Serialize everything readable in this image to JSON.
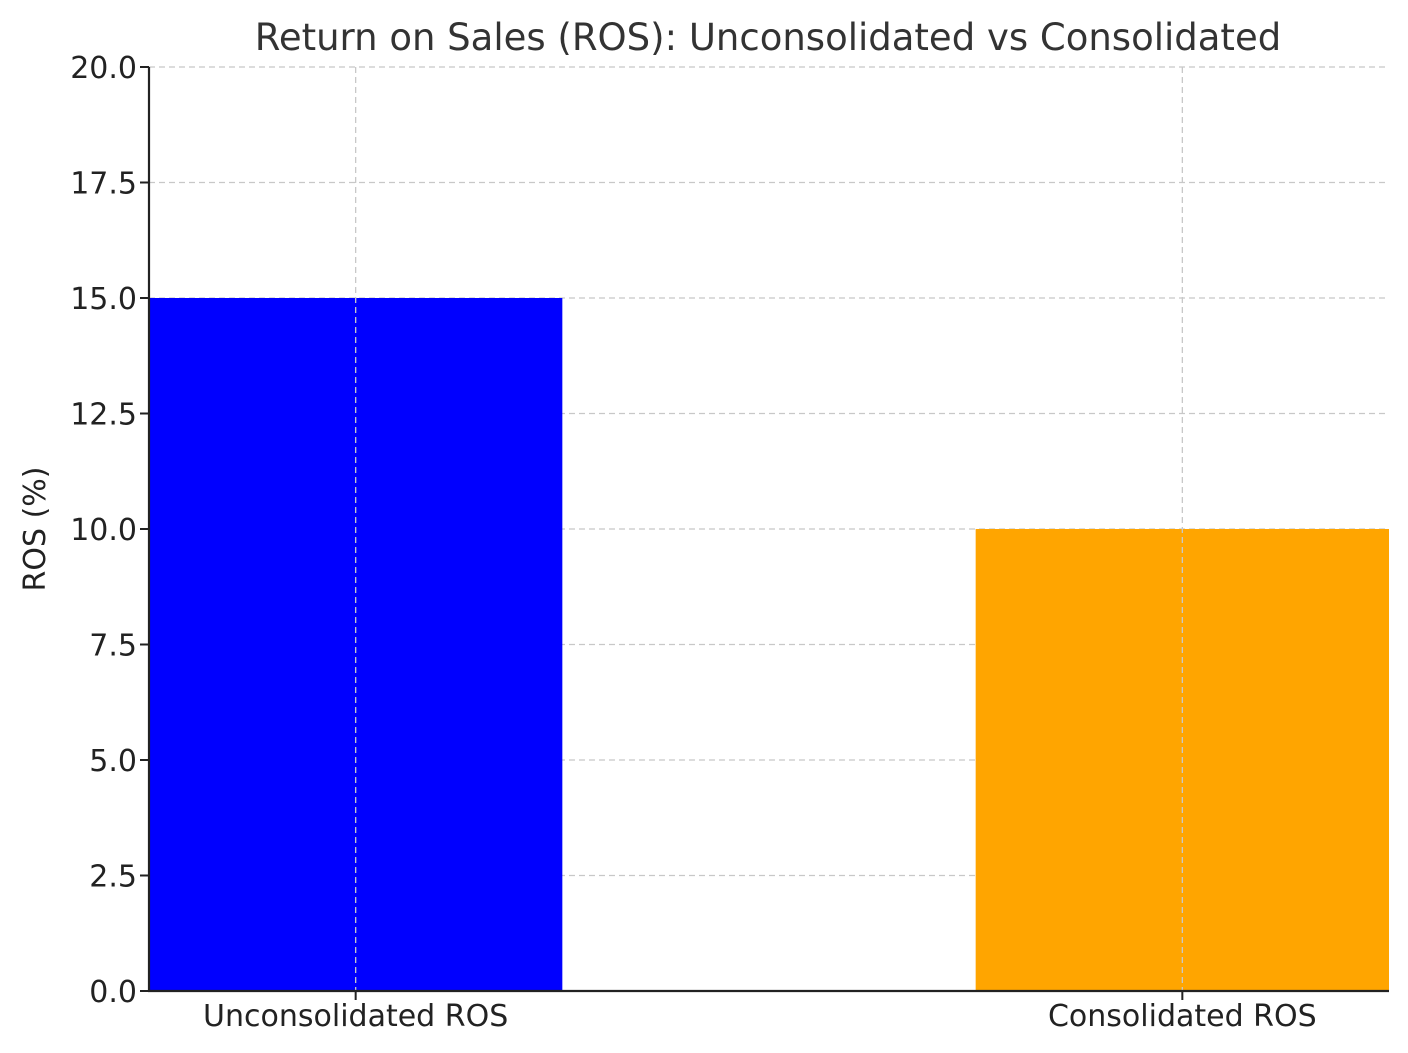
{
  "chart_data": {
    "type": "bar",
    "title": "Return on Sales (ROS): Unconsolidated vs Consolidated",
    "xlabel": "",
    "ylabel": "ROS (%)",
    "categories": [
      "Unconsolidated ROS",
      "Consolidated ROS"
    ],
    "values": [
      15.0,
      10.0
    ],
    "colors": [
      "#0000ff",
      "#ffa500"
    ],
    "ylim": [
      0,
      20
    ],
    "yticks": [
      "0.0",
      "2.5",
      "5.0",
      "7.5",
      "10.0",
      "12.5",
      "15.0",
      "17.5",
      "20.0"
    ],
    "grid": true,
    "legend": "none"
  }
}
